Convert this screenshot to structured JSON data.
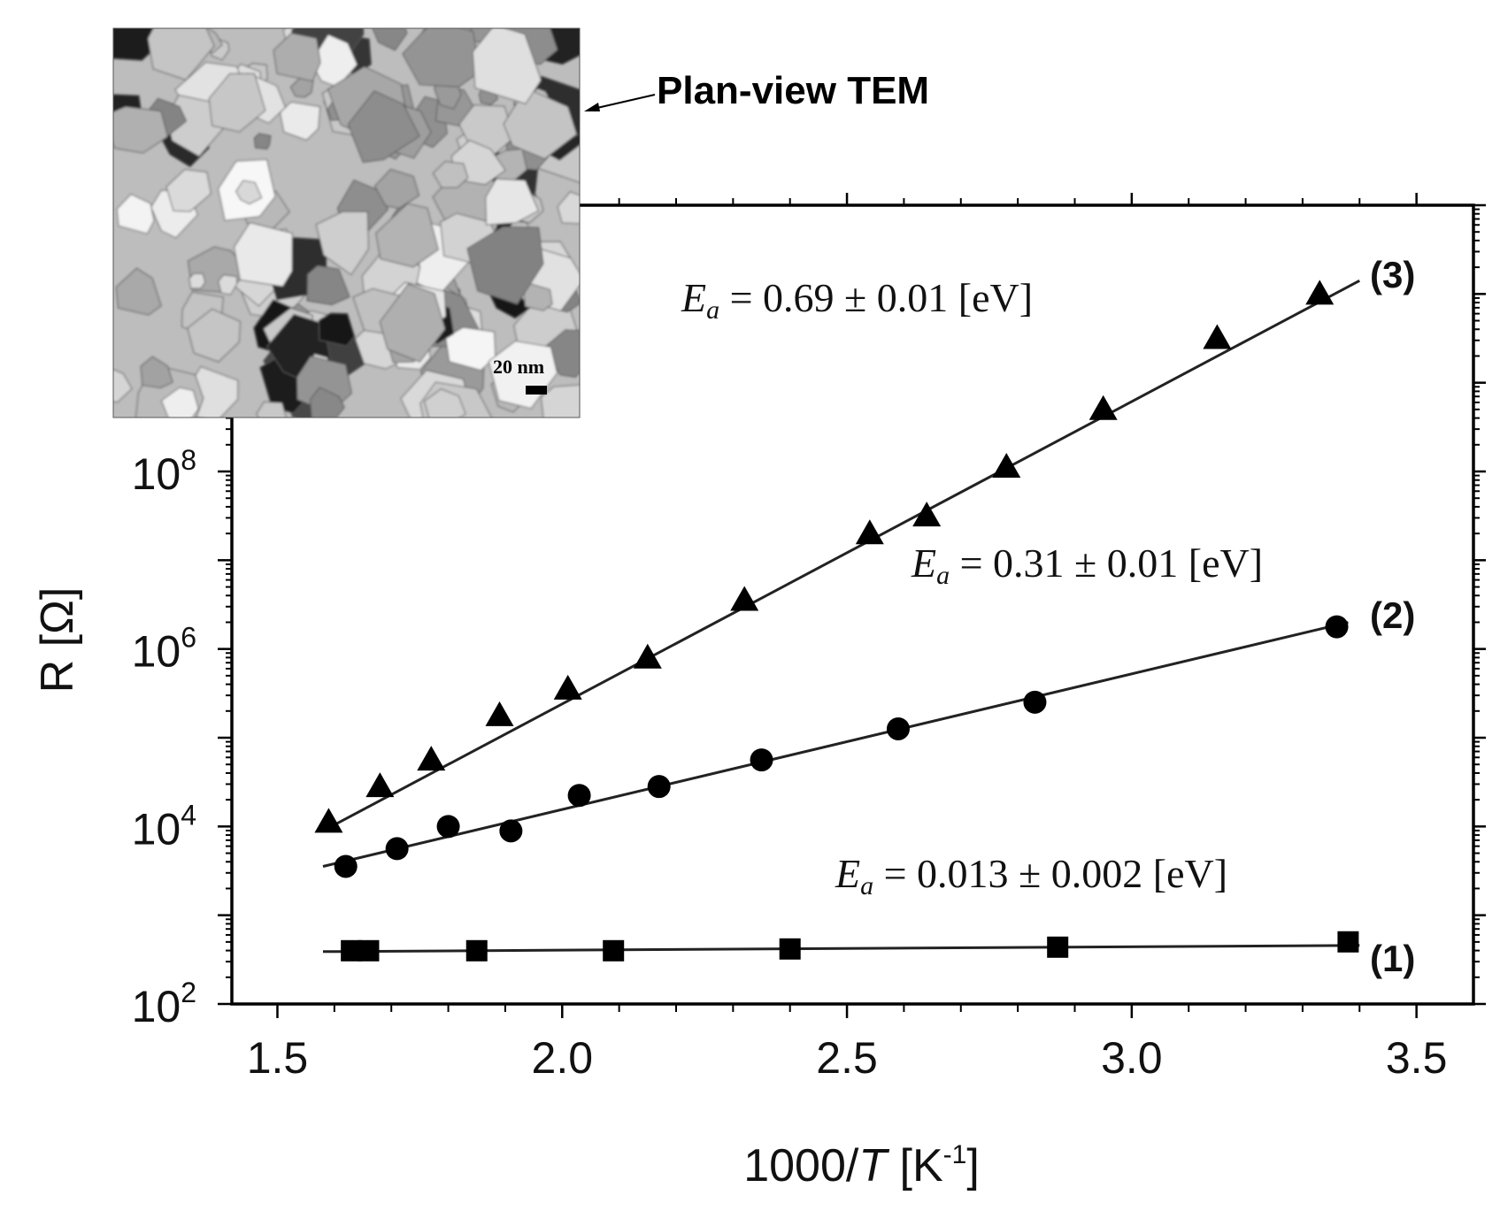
{
  "chart_data": {
    "type": "scatter",
    "xlabel": "1000/T [K-1]",
    "xlabel_parts": {
      "pre": "1000/",
      "italic": "T",
      "mid": " [K",
      "sup": "-1",
      "post": "]"
    },
    "ylabel": "R [Ω]",
    "xlim": [
      1.42,
      3.6
    ],
    "ylim": [
      2,
      11.0
    ],
    "y_scale": "log",
    "x_ticks": [
      {
        "value": 1.5,
        "label": "1.5"
      },
      {
        "value": 2.0,
        "label": "2.0"
      },
      {
        "value": 2.5,
        "label": "2.5"
      },
      {
        "value": 3.0,
        "label": "3.0"
      },
      {
        "value": 3.5,
        "label": "3.5"
      }
    ],
    "y_ticks": [
      {
        "value": 2,
        "base": "10",
        "exp": "2"
      },
      {
        "value": 4,
        "base": "10",
        "exp": "4"
      },
      {
        "value": 6,
        "base": "10",
        "exp": "6"
      },
      {
        "value": 8,
        "base": "10",
        "exp": "8"
      }
    ],
    "series": [
      {
        "id": "1",
        "label": "(1)",
        "marker": "square",
        "x": [
          1.63,
          1.66,
          1.85,
          2.09,
          2.4,
          2.87,
          3.38
        ],
        "log10_y": [
          2.6,
          2.6,
          2.6,
          2.6,
          2.62,
          2.64,
          2.7
        ],
        "fit_x": [
          1.58,
          3.4
        ],
        "fit_log10_y": [
          2.59,
          2.66
        ],
        "annotation": {
          "italic": "E",
          "sub": "a",
          "text": " = 0.013 ± 0.002 [eV]"
        }
      },
      {
        "id": "2",
        "label": "(2)",
        "marker": "circle",
        "x": [
          1.62,
          1.71,
          1.8,
          1.91,
          2.03,
          2.17,
          2.35,
          2.59,
          2.83,
          3.36
        ],
        "log10_y": [
          3.55,
          3.75,
          4.0,
          3.95,
          4.35,
          4.45,
          4.75,
          5.1,
          5.4,
          6.25
        ],
        "fit_x": [
          1.58,
          3.38
        ],
        "fit_log10_y": [
          3.55,
          6.3
        ],
        "annotation": {
          "italic": "E",
          "sub": "a",
          "text": " = 0.31 ± 0.01 [eV]"
        }
      },
      {
        "id": "3",
        "label": "(3)",
        "marker": "triangle",
        "x": [
          1.59,
          1.68,
          1.77,
          1.89,
          2.01,
          2.15,
          2.32,
          2.54,
          2.64,
          2.78,
          2.95,
          3.15,
          3.33
        ],
        "log10_y": [
          4.05,
          4.45,
          4.75,
          5.25,
          5.55,
          5.9,
          6.55,
          7.3,
          7.5,
          8.05,
          8.7,
          9.5,
          10.0
        ],
        "fit_x": [
          1.58,
          3.4
        ],
        "fit_log10_y": [
          3.95,
          10.15
        ],
        "annotation": {
          "italic": "E",
          "sub": "a",
          "text": " = 0.69 ± 0.01 [eV]"
        }
      }
    ]
  },
  "inset": {
    "label": "Plan-view TEM",
    "scale_bar": "20 nm"
  }
}
